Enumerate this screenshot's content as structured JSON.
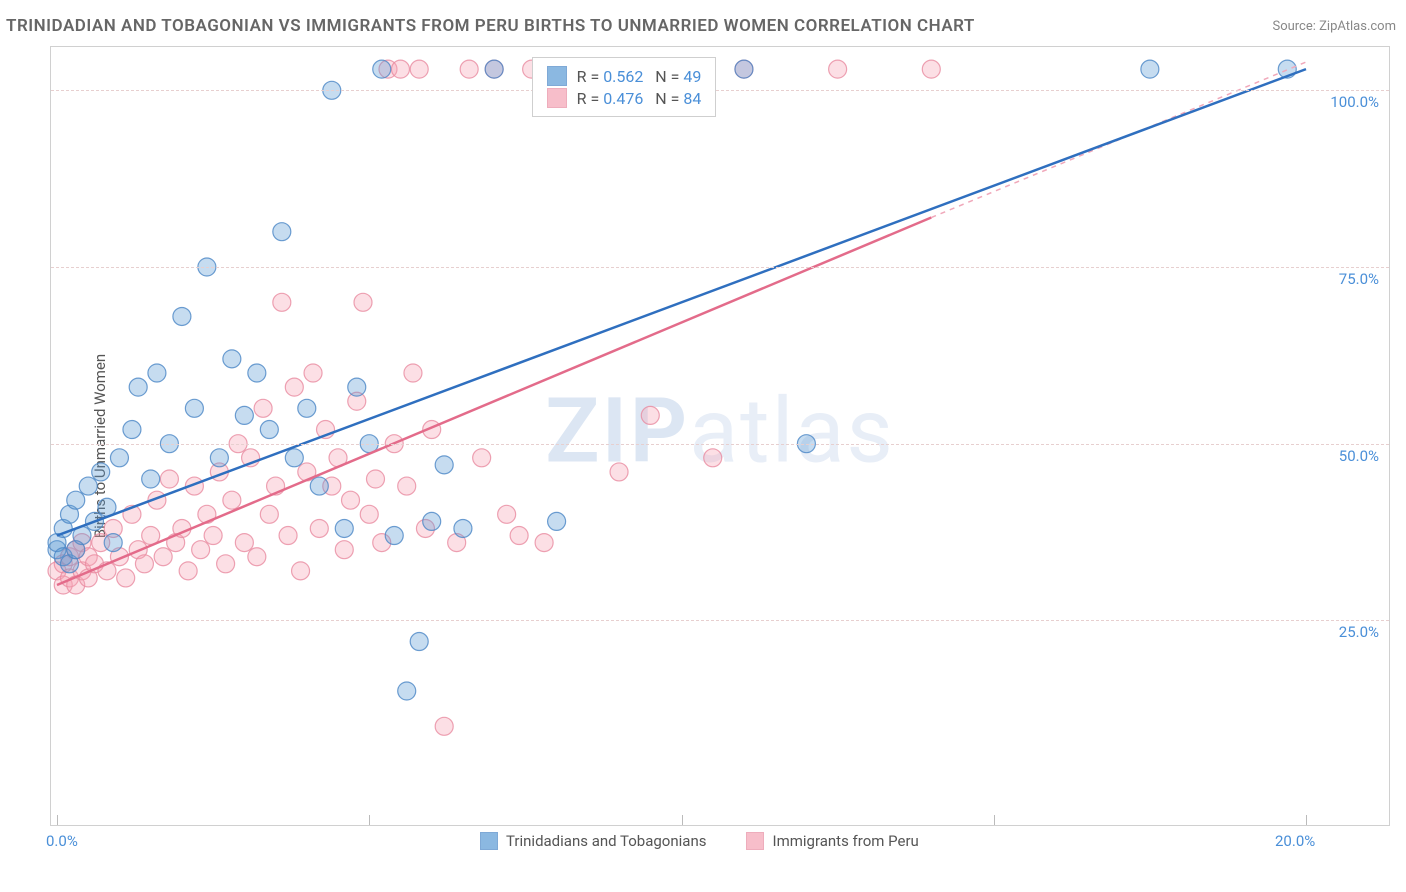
{
  "header": {
    "title": "TRINIDADIAN AND TOBAGONIAN VS IMMIGRANTS FROM PERU BIRTHS TO UNMARRIED WOMEN CORRELATION CHART",
    "source": "Source: ZipAtlas.com"
  },
  "watermark": {
    "bold": "ZIP",
    "light": "atlas"
  },
  "ylabel": "Births to Unmarried Women",
  "chart": {
    "type": "scatter_with_regression",
    "background_color": "#ffffff",
    "border_color": "#d0d0d0",
    "grid_dash_color": "#e7cfcf",
    "xlim": [
      0,
      20
    ],
    "ylim": [
      0,
      105
    ],
    "xtick_positions": [
      0,
      5,
      10,
      15,
      20
    ],
    "xtick_labels_shown": {
      "0": "0.0%",
      "20": "20.0%"
    },
    "ytick_positions": [
      25,
      50,
      75,
      100
    ],
    "ytick_labels": [
      "25.0%",
      "50.0%",
      "75.0%",
      "100.0%"
    ],
    "marker_radius": 9,
    "marker_fill_opacity": 0.35,
    "marker_stroke_opacity": 0.8,
    "series": [
      {
        "name": "Trinidadians and Tobagonians",
        "color": "#5b9bd5",
        "stroke": "#4a86c6",
        "r_value": "0.562",
        "n_value": "49",
        "regression": {
          "x1": 0,
          "y1": 37,
          "x2": 20,
          "y2": 103
        },
        "extrapolate_dash": null,
        "points": [
          [
            0.0,
            35
          ],
          [
            0.0,
            36
          ],
          [
            0.1,
            38
          ],
          [
            0.1,
            34
          ],
          [
            0.2,
            33
          ],
          [
            0.2,
            40
          ],
          [
            0.3,
            35
          ],
          [
            0.3,
            42
          ],
          [
            0.4,
            37
          ],
          [
            0.5,
            44
          ],
          [
            0.6,
            39
          ],
          [
            0.7,
            46
          ],
          [
            0.8,
            41
          ],
          [
            0.9,
            36
          ],
          [
            1.0,
            48
          ],
          [
            1.2,
            52
          ],
          [
            1.3,
            58
          ],
          [
            1.5,
            45
          ],
          [
            1.6,
            60
          ],
          [
            1.8,
            50
          ],
          [
            2.0,
            68
          ],
          [
            2.2,
            55
          ],
          [
            2.4,
            75
          ],
          [
            2.6,
            48
          ],
          [
            2.8,
            62
          ],
          [
            3.0,
            54
          ],
          [
            3.2,
            60
          ],
          [
            3.4,
            52
          ],
          [
            3.6,
            80
          ],
          [
            3.8,
            48
          ],
          [
            4.0,
            55
          ],
          [
            4.2,
            44
          ],
          [
            4.4,
            100
          ],
          [
            4.6,
            38
          ],
          [
            4.8,
            58
          ],
          [
            5.0,
            50
          ],
          [
            5.2,
            103
          ],
          [
            5.4,
            37
          ],
          [
            5.6,
            15
          ],
          [
            5.8,
            22
          ],
          [
            6.0,
            39
          ],
          [
            6.2,
            47
          ],
          [
            6.5,
            38
          ],
          [
            7.0,
            103
          ],
          [
            8.0,
            39
          ],
          [
            11.0,
            103
          ],
          [
            12.0,
            50
          ],
          [
            17.5,
            103
          ],
          [
            19.7,
            103
          ]
        ]
      },
      {
        "name": "Immigrants from Peru",
        "color": "#f5a3b4",
        "stroke": "#e88ba0",
        "r_value": "0.476",
        "n_value": "84",
        "regression": {
          "x1": 0,
          "y1": 30,
          "x2": 14,
          "y2": 82
        },
        "extrapolate_dash": {
          "x1": 14,
          "y1": 82,
          "x2": 20,
          "y2": 104
        },
        "points": [
          [
            0.0,
            32
          ],
          [
            0.1,
            30
          ],
          [
            0.1,
            33
          ],
          [
            0.2,
            31
          ],
          [
            0.2,
            34
          ],
          [
            0.3,
            30
          ],
          [
            0.3,
            35
          ],
          [
            0.4,
            32
          ],
          [
            0.4,
            36
          ],
          [
            0.5,
            31
          ],
          [
            0.5,
            34
          ],
          [
            0.6,
            33
          ],
          [
            0.7,
            36
          ],
          [
            0.8,
            32
          ],
          [
            0.9,
            38
          ],
          [
            1.0,
            34
          ],
          [
            1.1,
            31
          ],
          [
            1.2,
            40
          ],
          [
            1.3,
            35
          ],
          [
            1.4,
            33
          ],
          [
            1.5,
            37
          ],
          [
            1.6,
            42
          ],
          [
            1.7,
            34
          ],
          [
            1.8,
            45
          ],
          [
            1.9,
            36
          ],
          [
            2.0,
            38
          ],
          [
            2.1,
            32
          ],
          [
            2.2,
            44
          ],
          [
            2.3,
            35
          ],
          [
            2.4,
            40
          ],
          [
            2.5,
            37
          ],
          [
            2.6,
            46
          ],
          [
            2.7,
            33
          ],
          [
            2.8,
            42
          ],
          [
            2.9,
            50
          ],
          [
            3.0,
            36
          ],
          [
            3.1,
            48
          ],
          [
            3.2,
            34
          ],
          [
            3.3,
            55
          ],
          [
            3.4,
            40
          ],
          [
            3.5,
            44
          ],
          [
            3.6,
            70
          ],
          [
            3.7,
            37
          ],
          [
            3.8,
            58
          ],
          [
            3.9,
            32
          ],
          [
            4.0,
            46
          ],
          [
            4.1,
            60
          ],
          [
            4.2,
            38
          ],
          [
            4.3,
            52
          ],
          [
            4.4,
            44
          ],
          [
            4.5,
            48
          ],
          [
            4.6,
            35
          ],
          [
            4.7,
            42
          ],
          [
            4.8,
            56
          ],
          [
            4.9,
            70
          ],
          [
            5.0,
            40
          ],
          [
            5.1,
            45
          ],
          [
            5.2,
            36
          ],
          [
            5.3,
            103
          ],
          [
            5.4,
            50
          ],
          [
            5.5,
            103
          ],
          [
            5.6,
            44
          ],
          [
            5.7,
            60
          ],
          [
            5.8,
            103
          ],
          [
            5.9,
            38
          ],
          [
            6.0,
            52
          ],
          [
            6.2,
            10
          ],
          [
            6.4,
            36
          ],
          [
            6.6,
            103
          ],
          [
            6.8,
            48
          ],
          [
            7.0,
            103
          ],
          [
            7.2,
            40
          ],
          [
            7.4,
            37
          ],
          [
            7.6,
            103
          ],
          [
            7.8,
            36
          ],
          [
            8.0,
            103
          ],
          [
            8.5,
            103
          ],
          [
            9.0,
            46
          ],
          [
            9.5,
            54
          ],
          [
            10.0,
            103
          ],
          [
            10.5,
            48
          ],
          [
            11.0,
            103
          ],
          [
            12.5,
            103
          ],
          [
            14.0,
            103
          ]
        ]
      }
    ]
  },
  "top_legend": {
    "rows": [
      {
        "series_idx": 0
      },
      {
        "series_idx": 1
      }
    ]
  },
  "bottom_legend": {
    "items": [
      {
        "series_idx": 0
      },
      {
        "series_idx": 1
      }
    ]
  }
}
